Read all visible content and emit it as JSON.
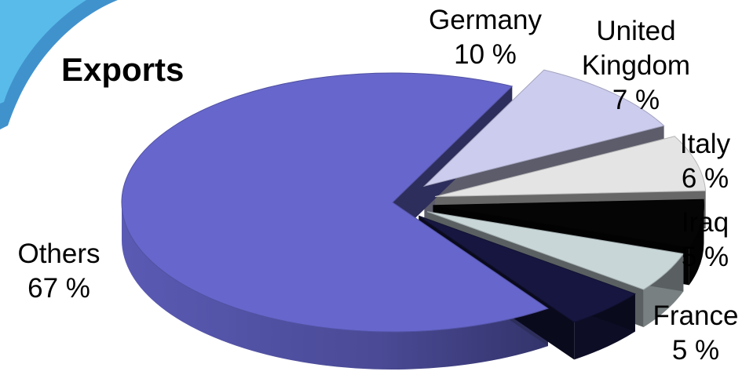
{
  "chart_data": {
    "type": "pie",
    "title": "Exports",
    "slices": [
      {
        "label": "Others",
        "value": 67,
        "value_label": "67 %",
        "color": "#6666cc"
      },
      {
        "label": "Germany",
        "value": 10,
        "value_label": "10 %",
        "color": "#ccccee"
      },
      {
        "label": "United Kingdom",
        "label_lines": [
          "United",
          "Kingdom"
        ],
        "value": 7,
        "value_label": "7 %",
        "color": "#e4e4e4"
      },
      {
        "label": "Italy",
        "value": 6,
        "value_label": "6 %",
        "color": "#050505"
      },
      {
        "label": "Iraq",
        "value": 5,
        "value_label": "5 %",
        "color": "#c8d6d8"
      },
      {
        "label": "France",
        "value": 5,
        "value_label": "5 %",
        "color": "#161640"
      }
    ],
    "style": "3d-exploded"
  },
  "decor": {
    "corner_swoosh_color": "#1e7fc4"
  }
}
